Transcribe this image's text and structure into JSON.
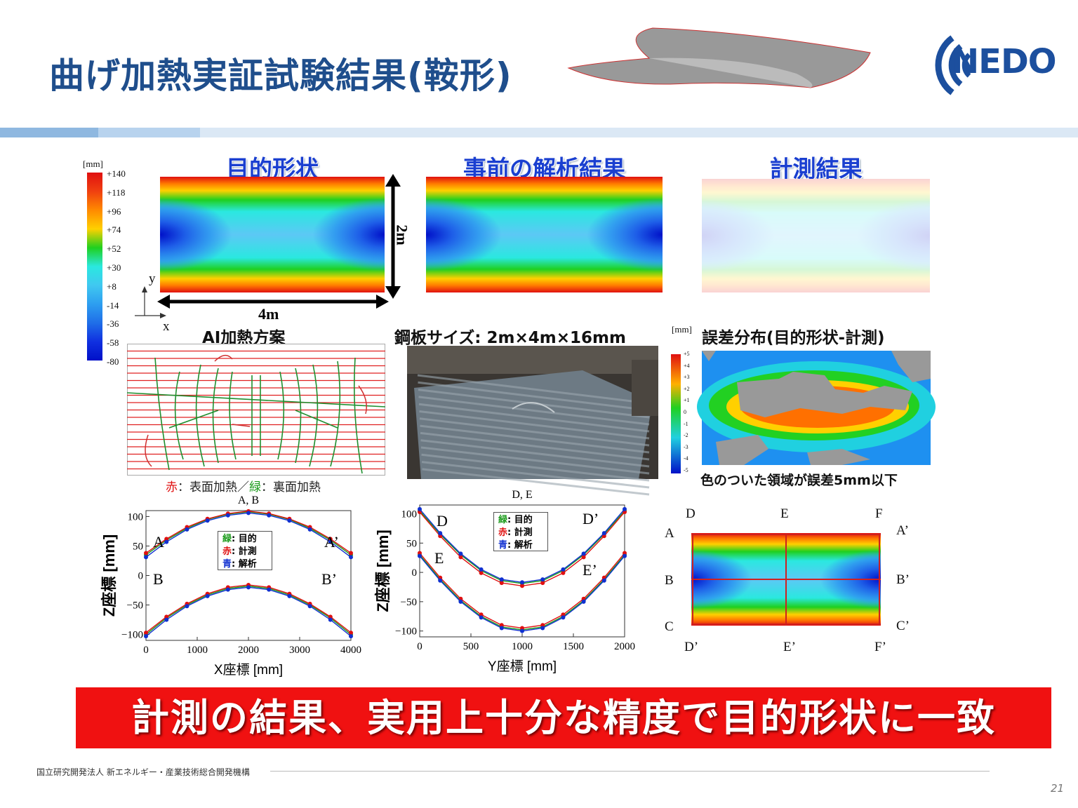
{
  "title": "曲げ加熱実証試験結果(鞍形)",
  "logo": {
    "text": "NEDO"
  },
  "panels": {
    "target": "目的形状",
    "analysis": "事前の解析結果",
    "measured": "計測結果"
  },
  "colorscale": {
    "unit": "[mm]",
    "ticks": [
      "+140",
      "+118",
      "+96",
      "+74",
      "+52",
      "+30",
      "+8",
      "-14",
      "-36",
      "-58",
      "-80"
    ]
  },
  "dims": {
    "height": "2m",
    "width": "4m"
  },
  "axes_glyph": {
    "x": "x",
    "y": "y"
  },
  "heating": {
    "title": "AI加熱方案",
    "legend_red": "赤",
    "legend_sep1": "：表面加熱／",
    "legend_green": "緑",
    "legend_sep2": "：裏面加熱"
  },
  "plate": {
    "caption": "鋼板サイズ: 2m×4m×16mm"
  },
  "error": {
    "title": "誤差分布(目的形状-計測)",
    "unit": "[mm]",
    "ticks": [
      "+5",
      "+4",
      "+3",
      "+2",
      "+1",
      "0",
      "-1",
      "-2",
      "-3",
      "-4",
      "-5"
    ],
    "note": "色のついた領域が誤差5mm以下"
  },
  "legend": {
    "green_key": "緑",
    "green_val": ": 目的",
    "red_key": "赤",
    "red_val": ": 計測",
    "blue_key": "青",
    "blue_val": ": 解析"
  },
  "sections": {
    "D": "D",
    "E": "E",
    "F": "F",
    "A": "A",
    "B": "B",
    "C": "C",
    "A2": "A’",
    "B2": "B’",
    "C2": "C’",
    "D2": "D’",
    "E2": "E’",
    "F2": "F’"
  },
  "chart_data": [
    {
      "type": "line",
      "title": "A, B",
      "xlabel": "X座標 [mm]",
      "ylabel": "Z座標 [mm]",
      "xlim": [
        0,
        4000
      ],
      "ylim": [
        -110,
        110
      ],
      "xticks": [
        "0",
        "1000",
        "2000",
        "3000",
        "4000"
      ],
      "yticks": [
        "100",
        "50",
        "0",
        "−50",
        "−100"
      ],
      "annotations": [
        "A",
        "A’",
        "B",
        "B’"
      ],
      "x": [
        0,
        400,
        800,
        1200,
        1600,
        2000,
        2400,
        2800,
        3200,
        3600,
        4000
      ],
      "series": [
        {
          "name": "目的",
          "color": "#1a9a1a",
          "values": [
            35,
            60,
            80,
            95,
            104,
            108,
            104,
            95,
            80,
            60,
            35
          ]
        },
        {
          "name": "計測",
          "color": "#e01010",
          "values": [
            38,
            62,
            82,
            96,
            105,
            109,
            105,
            96,
            82,
            62,
            38
          ]
        },
        {
          "name": "解析",
          "color": "#1030d0",
          "values": [
            31,
            57,
            78,
            93,
            102,
            106,
            102,
            93,
            78,
            57,
            31
          ]
        },
        {
          "name": "目的",
          "color": "#1a9a1a",
          "values": [
            -100,
            -72,
            -50,
            -33,
            -22,
            -18,
            -22,
            -33,
            -50,
            -72,
            -100
          ]
        },
        {
          "name": "計測",
          "color": "#e01010",
          "values": [
            -97,
            -70,
            -48,
            -31,
            -20,
            -16,
            -20,
            -31,
            -48,
            -70,
            -97
          ]
        },
        {
          "name": "解析",
          "color": "#1030d0",
          "values": [
            -103,
            -75,
            -52,
            -35,
            -24,
            -20,
            -24,
            -35,
            -52,
            -75,
            -103
          ]
        }
      ]
    },
    {
      "type": "line",
      "title": "D, E",
      "xlabel": "Y座標 [mm]",
      "ylabel": "Z座標 [mm]",
      "xlim": [
        0,
        2000
      ],
      "ylim": [
        -110,
        115
      ],
      "xticks": [
        "0",
        "500",
        "1000",
        "1500",
        "2000"
      ],
      "yticks": [
        "100",
        "50",
        "0",
        "−50",
        "−100"
      ],
      "annotations": [
        "D",
        "D’",
        "E",
        "E’"
      ],
      "x": [
        0,
        200,
        400,
        600,
        800,
        1000,
        1200,
        1400,
        1600,
        1800,
        2000
      ],
      "series": [
        {
          "name": "目的",
          "color": "#1a9a1a",
          "values": [
            105,
            65,
            30,
            3,
            -14,
            -19,
            -14,
            3,
            30,
            65,
            105
          ]
        },
        {
          "name": "計測",
          "color": "#e01010",
          "values": [
            103,
            62,
            26,
            -1,
            -18,
            -23,
            -18,
            -1,
            26,
            62,
            103
          ]
        },
        {
          "name": "解析",
          "color": "#1030d0",
          "values": [
            108,
            67,
            32,
            5,
            -12,
            -17,
            -12,
            5,
            32,
            67,
            108
          ]
        },
        {
          "name": "目的",
          "color": "#1a9a1a",
          "values": [
            30,
            -12,
            -48,
            -75,
            -93,
            -98,
            -93,
            -75,
            -48,
            -12,
            30
          ]
        },
        {
          "name": "計測",
          "color": "#e01010",
          "values": [
            33,
            -9,
            -45,
            -72,
            -90,
            -95,
            -90,
            -72,
            -45,
            -9,
            33
          ]
        },
        {
          "name": "解析",
          "color": "#1030d0",
          "values": [
            28,
            -14,
            -50,
            -77,
            -95,
            -100,
            -95,
            -77,
            -50,
            -14,
            28
          ]
        }
      ]
    }
  ],
  "conclusion": "計測の結果、実用上十分な精度で目的形状に一致",
  "footer": "国立研究開発法人 新エネルギー・産業技術総合開発機構",
  "page_number": "21"
}
